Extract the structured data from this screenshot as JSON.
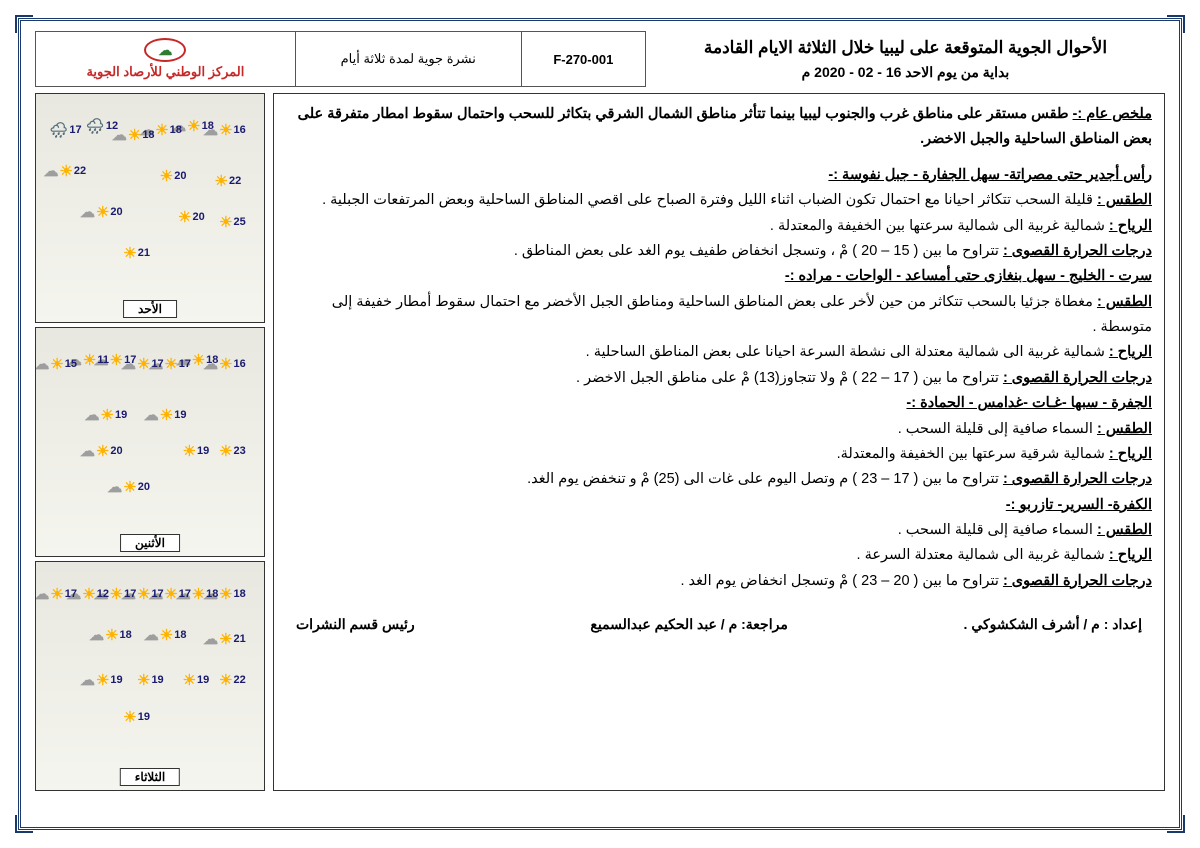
{
  "header": {
    "title": "الأحوال الجوية المتوقعة على ليبيا خلال الثلاثة الايام القادمة",
    "subtitle": "بداية من يوم الاحد  16 - 02 - 2020 م",
    "code": "F-270-001",
    "bulletin": "نشرة جوية لمدة ثلاثة أيام",
    "org": "المركز الوطني للأرصاد الجوية"
  },
  "summary_label": "ملخص عام :-",
  "summary_text": "طقس مستقر على مناطق غرب والجنوب ليبيا بينما تتأثر مناطق الشمال الشرقي بتكاثر للسحب واحتمال سقوط امطار متفرقة على بعض المناطق الساحلية والجبل الاخضر.",
  "regions": [
    {
      "name": "رأس أجدير حتى مصراتة- سهل الجفارة - جبل نفوسة :-",
      "weather": "قليلة السحب تتكاثر احيانا مع احتمال  تكون الضباب اثناء الليل وفترة الصباح على اقصي المناطق الساحلية  وبعض المرتفعات الجبلية .",
      "wind": "شمالية غربية الى شمالية سرعتها بين الخفيفة والمعتدلة .",
      "temp": "تتراوح ما بين ( 15 – 20 ) مْ ، وتسجل انخفاض طفيف يوم الغد على بعض المناطق ."
    },
    {
      "name": "سرت - الخليج - سهل بنغازى حتى أمساعد - الواحات - مراده :-",
      "weather": "مغطاة جزئيا بالسحب تتكاثر من حين لأخر على بعض المناطق الساحلية ومناطق الجبل الأخضر مع احتمال سقوط أمطار خفيفة إلى متوسطة .",
      "wind": "شمالية غربية الى شمالية معتدلة  الى نشطة السرعة احيانا على بعض المناطق الساحلية .",
      "temp": "تتراوح ما بين ( 17 – 22 ) مْ  ولا تتجاوز(13) مْ على مناطق الجبل الاخضر ."
    },
    {
      "name": "الجفرة - سبها -غـات -غدامس - الحمادة :-",
      "weather": "السماء صافية إلى قليلة السحب .",
      "wind": "شمالية شرقية سرعتها بين الخفيفة والمعتدلة.",
      "temp": "تتراوح ما بين ( 17 – 23 ) م وتصل اليوم على غات الى (25) مْ و تنخفض يوم الغد."
    },
    {
      "name": "الكفرة- السرير- تازربو :-",
      "weather": "السماء صافية إلى قليلة السحب .",
      "wind": "شمالية غربية الى شمالية معتدلة السرعة .",
      "temp": "تتراوح ما بين ( 20 – 23 ) مْ وتسجل انخفاض يوم الغد ."
    }
  ],
  "labels": {
    "weather": "الطقس :",
    "wind": "الرياح :",
    "temp": "درجات الحرارة القصوى :"
  },
  "footer": {
    "prep": "إعداد : م / أشرف الشكشوكي  .",
    "review": "مراجعة: م / عبد الحكيم عبدالسميع",
    "head": "رئيس قسم النشرات"
  },
  "maps": [
    {
      "day": "الأحد",
      "points": [
        {
          "t": 16,
          "x": 8,
          "y": 12,
          "k": "pc"
        },
        {
          "t": 18,
          "x": 22,
          "y": 10,
          "k": "pc"
        },
        {
          "t": 18,
          "x": 36,
          "y": 12,
          "k": "pc"
        },
        {
          "t": 18,
          "x": 48,
          "y": 14,
          "k": "pc"
        },
        {
          "t": 12,
          "x": 64,
          "y": 10,
          "k": "rn"
        },
        {
          "t": 17,
          "x": 80,
          "y": 12,
          "k": "rn"
        },
        {
          "t": 22,
          "x": 10,
          "y": 34,
          "k": "sn"
        },
        {
          "t": 20,
          "x": 34,
          "y": 32,
          "k": "sn"
        },
        {
          "t": 22,
          "x": 78,
          "y": 30,
          "k": "pc"
        },
        {
          "t": 25,
          "x": 8,
          "y": 52,
          "k": "sn"
        },
        {
          "t": 20,
          "x": 26,
          "y": 50,
          "k": "sn"
        },
        {
          "t": 20,
          "x": 62,
          "y": 48,
          "k": "pc"
        },
        {
          "t": 21,
          "x": 50,
          "y": 66,
          "k": "sn"
        }
      ]
    },
    {
      "day": "الأثنين",
      "points": [
        {
          "t": 16,
          "x": 8,
          "y": 12,
          "k": "pc"
        },
        {
          "t": 18,
          "x": 20,
          "y": 10,
          "k": "pc"
        },
        {
          "t": 17,
          "x": 32,
          "y": 12,
          "k": "pc"
        },
        {
          "t": 17,
          "x": 44,
          "y": 12,
          "k": "pc"
        },
        {
          "t": 17,
          "x": 56,
          "y": 10,
          "k": "pc"
        },
        {
          "t": 11,
          "x": 68,
          "y": 10,
          "k": "pc"
        },
        {
          "t": 15,
          "x": 82,
          "y": 12,
          "k": "pc"
        },
        {
          "t": 19,
          "x": 34,
          "y": 34,
          "k": "pc"
        },
        {
          "t": 19,
          "x": 60,
          "y": 34,
          "k": "pc"
        },
        {
          "t": 23,
          "x": 8,
          "y": 50,
          "k": "sn"
        },
        {
          "t": 19,
          "x": 24,
          "y": 50,
          "k": "sn"
        },
        {
          "t": 20,
          "x": 62,
          "y": 50,
          "k": "pc"
        },
        {
          "t": 20,
          "x": 50,
          "y": 66,
          "k": "pc"
        }
      ]
    },
    {
      "day": "الثلاثاء",
      "points": [
        {
          "t": 18,
          "x": 8,
          "y": 10,
          "k": "pc"
        },
        {
          "t": 18,
          "x": 20,
          "y": 10,
          "k": "pc"
        },
        {
          "t": 17,
          "x": 32,
          "y": 10,
          "k": "pc"
        },
        {
          "t": 17,
          "x": 44,
          "y": 10,
          "k": "pc"
        },
        {
          "t": 17,
          "x": 56,
          "y": 10,
          "k": "pc"
        },
        {
          "t": 12,
          "x": 68,
          "y": 10,
          "k": "pc"
        },
        {
          "t": 17,
          "x": 82,
          "y": 10,
          "k": "pc"
        },
        {
          "t": 21,
          "x": 8,
          "y": 30,
          "k": "pc"
        },
        {
          "t": 18,
          "x": 34,
          "y": 28,
          "k": "pc"
        },
        {
          "t": 18,
          "x": 58,
          "y": 28,
          "k": "pc"
        },
        {
          "t": 22,
          "x": 8,
          "y": 48,
          "k": "sn"
        },
        {
          "t": 19,
          "x": 24,
          "y": 48,
          "k": "sn"
        },
        {
          "t": 19,
          "x": 44,
          "y": 48,
          "k": "sn"
        },
        {
          "t": 19,
          "x": 62,
          "y": 48,
          "k": "pc"
        },
        {
          "t": 19,
          "x": 50,
          "y": 64,
          "k": "sn"
        }
      ]
    }
  ]
}
